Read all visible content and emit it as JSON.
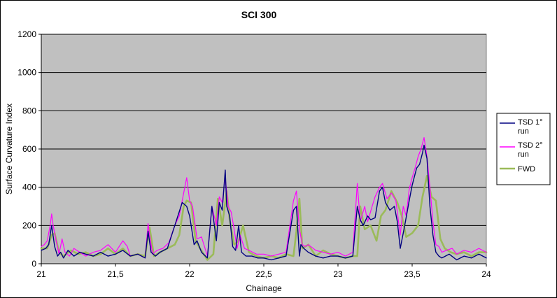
{
  "chart_data": {
    "type": "line",
    "title": "SCI 300",
    "xlabel": "Chainage",
    "ylabel": "Surface Curvature Index",
    "xlim": [
      21,
      24
    ],
    "ylim": [
      0,
      1200
    ],
    "x_ticks": [
      21,
      21.5,
      22,
      22.5,
      23,
      23.5,
      24
    ],
    "x_tick_labels": [
      "21",
      "21,5",
      "22",
      "22,5",
      "23",
      "23,5",
      "24"
    ],
    "y_ticks": [
      0,
      200,
      400,
      600,
      800,
      1000,
      1200
    ],
    "y_tick_labels": [
      "0",
      "200",
      "400",
      "600",
      "800",
      "1000",
      "1200"
    ],
    "grid": "horizontal",
    "background": "#c0c0c0",
    "legend_position": "right",
    "series": [
      {
        "name": "TSD 1° run",
        "color": "#000080",
        "x": [
          21.0,
          21.03,
          21.05,
          21.07,
          21.09,
          21.11,
          21.13,
          21.15,
          21.18,
          21.22,
          21.26,
          21.3,
          21.35,
          21.4,
          21.45,
          21.5,
          21.55,
          21.6,
          21.65,
          21.7,
          21.72,
          21.74,
          21.77,
          21.8,
          21.85,
          21.9,
          21.95,
          21.98,
          22.0,
          22.03,
          22.05,
          22.08,
          22.12,
          22.15,
          22.18,
          22.2,
          22.22,
          22.24,
          22.25,
          22.27,
          22.29,
          22.31,
          22.33,
          22.35,
          22.38,
          22.42,
          22.46,
          22.5,
          22.55,
          22.6,
          22.65,
          22.7,
          22.72,
          22.74,
          22.75,
          22.77,
          22.8,
          22.85,
          22.9,
          22.95,
          23.0,
          23.05,
          23.1,
          23.13,
          23.15,
          23.17,
          23.2,
          23.22,
          23.25,
          23.28,
          23.3,
          23.32,
          23.35,
          23.38,
          23.4,
          23.42,
          23.45,
          23.48,
          23.5,
          23.53,
          23.55,
          23.57,
          23.58,
          23.6,
          23.62,
          23.64,
          23.66,
          23.68,
          23.7,
          23.75,
          23.8,
          23.85,
          23.9,
          23.95,
          24.0
        ],
        "y": [
          70,
          80,
          100,
          200,
          90,
          40,
          60,
          30,
          70,
          40,
          60,
          50,
          40,
          60,
          40,
          50,
          70,
          40,
          50,
          30,
          170,
          60,
          40,
          60,
          80,
          200,
          320,
          300,
          250,
          100,
          120,
          60,
          30,
          300,
          120,
          320,
          280,
          490,
          300,
          250,
          90,
          70,
          200,
          60,
          40,
          40,
          30,
          30,
          20,
          30,
          40,
          280,
          300,
          40,
          100,
          80,
          60,
          40,
          30,
          40,
          40,
          30,
          40,
          300,
          230,
          200,
          250,
          230,
          240,
          380,
          400,
          320,
          280,
          300,
          220,
          80,
          200,
          330,
          410,
          500,
          520,
          580,
          620,
          550,
          300,
          150,
          60,
          40,
          30,
          50,
          20,
          40,
          30,
          50,
          30
        ]
      },
      {
        "name": "TSD 2° run",
        "color": "#ff00ff",
        "x": [
          21.0,
          21.02,
          21.04,
          21.06,
          21.07,
          21.08,
          21.1,
          21.12,
          21.14,
          21.16,
          21.19,
          21.22,
          21.26,
          21.3,
          21.35,
          21.4,
          21.45,
          21.5,
          21.55,
          21.58,
          21.6,
          21.65,
          21.7,
          21.72,
          21.73,
          21.75,
          21.78,
          21.82,
          21.86,
          21.9,
          21.93,
          21.96,
          21.98,
          22.0,
          22.02,
          22.05,
          22.08,
          22.12,
          22.15,
          22.18,
          22.2,
          22.22,
          22.24,
          22.26,
          22.28,
          22.3,
          22.32,
          22.34,
          22.37,
          22.4,
          22.45,
          22.5,
          22.55,
          22.6,
          22.65,
          22.7,
          22.72,
          22.74,
          22.76,
          22.78,
          22.8,
          22.85,
          22.9,
          22.95,
          23.0,
          23.05,
          23.1,
          23.13,
          23.15,
          23.18,
          23.2,
          23.23,
          23.25,
          23.28,
          23.3,
          23.33,
          23.36,
          23.39,
          23.42,
          23.44,
          23.46,
          23.48,
          23.5,
          23.52,
          23.54,
          23.56,
          23.58,
          23.59,
          23.6,
          23.62,
          23.64,
          23.66,
          23.68,
          23.7,
          23.73,
          23.77,
          23.8,
          23.85,
          23.9,
          23.95,
          24.0
        ],
        "y": [
          90,
          100,
          120,
          200,
          260,
          200,
          120,
          50,
          130,
          60,
          40,
          80,
          60,
          40,
          60,
          70,
          100,
          60,
          120,
          90,
          40,
          50,
          30,
          210,
          150,
          50,
          70,
          80,
          110,
          200,
          250,
          370,
          450,
          330,
          300,
          130,
          140,
          40,
          300,
          200,
          350,
          320,
          450,
          300,
          270,
          180,
          80,
          150,
          80,
          70,
          50,
          50,
          40,
          50,
          60,
          330,
          380,
          180,
          100,
          90,
          100,
          70,
          60,
          50,
          60,
          40,
          60,
          420,
          220,
          300,
          220,
          300,
          350,
          400,
          420,
          340,
          370,
          330,
          150,
          300,
          250,
          390,
          450,
          500,
          560,
          600,
          660,
          610,
          560,
          400,
          220,
          100,
          90,
          60,
          70,
          80,
          50,
          70,
          60,
          80,
          60
        ]
      },
      {
        "name": "FWD",
        "color": "#9bbb59",
        "x": [
          21.0,
          21.04,
          21.07,
          21.09,
          21.12,
          21.15,
          21.2,
          21.25,
          21.3,
          21.35,
          21.4,
          21.45,
          21.5,
          21.55,
          21.6,
          21.65,
          21.7,
          21.73,
          21.76,
          21.8,
          21.85,
          21.9,
          21.93,
          21.96,
          21.98,
          22.01,
          22.04,
          22.07,
          22.12,
          22.16,
          22.19,
          22.22,
          22.25,
          22.27,
          22.3,
          22.33,
          22.36,
          22.4,
          22.45,
          22.5,
          22.55,
          22.6,
          22.65,
          22.7,
          22.72,
          22.74,
          22.76,
          22.8,
          22.85,
          22.9,
          22.95,
          23.0,
          23.05,
          23.1,
          23.13,
          23.15,
          23.18,
          23.22,
          23.26,
          23.29,
          23.32,
          23.36,
          23.4,
          23.43,
          23.46,
          23.5,
          23.54,
          23.57,
          23.6,
          23.63,
          23.66,
          23.69,
          23.72,
          23.76,
          23.8,
          23.85,
          23.9,
          23.95,
          24.0
        ],
        "y": [
          80,
          80,
          150,
          160,
          60,
          40,
          70,
          50,
          60,
          40,
          50,
          80,
          50,
          80,
          40,
          50,
          40,
          190,
          40,
          60,
          80,
          100,
          150,
          300,
          330,
          320,
          120,
          80,
          20,
          50,
          340,
          200,
          380,
          230,
          100,
          120,
          200,
          60,
          40,
          30,
          40,
          30,
          50,
          40,
          170,
          340,
          80,
          100,
          40,
          70,
          50,
          40,
          30,
          40,
          40,
          300,
          180,
          200,
          120,
          250,
          280,
          380,
          320,
          250,
          140,
          160,
          200,
          350,
          460,
          350,
          330,
          130,
          80,
          60,
          50,
          60,
          40,
          60,
          60
        ]
      }
    ]
  }
}
